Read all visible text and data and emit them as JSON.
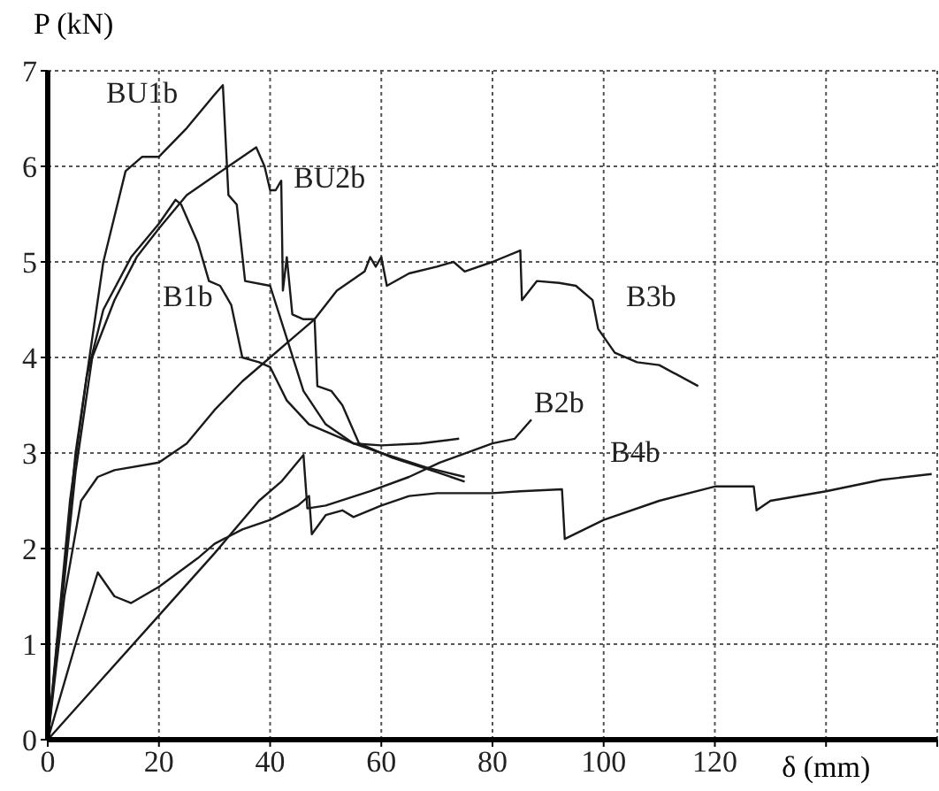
{
  "chart_data": {
    "type": "line",
    "xlabel": "δ (mm)",
    "ylabel": "P (kN)",
    "xlim": [
      0,
      160
    ],
    "xticks": [
      0,
      20,
      40,
      60,
      80,
      100,
      120,
      {
        "value": 140,
        "label": null
      },
      {
        "value": 160,
        "label": null
      }
    ],
    "ylim": [
      0,
      7
    ],
    "yticks": [
      0,
      1,
      2,
      3,
      4,
      5,
      6,
      7
    ],
    "grid": true,
    "legend": false,
    "series": [
      {
        "name": "BU1b",
        "color": "#1a1a1a",
        "x": [
          0,
          5,
          10,
          14,
          17,
          20,
          25,
          30,
          31.5,
          32.5,
          34,
          35.5,
          40,
          43,
          46,
          50,
          55,
          60,
          67,
          74
        ],
        "values": [
          0,
          3,
          5,
          5.95,
          6.1,
          6.1,
          6.4,
          6.75,
          6.85,
          5.7,
          5.6,
          4.8,
          4.75,
          4.2,
          3.65,
          3.3,
          3.1,
          3.08,
          3.1,
          3.15
        ]
      },
      {
        "name": "BU2b",
        "color": "#1a1a1a",
        "x": [
          0,
          5,
          8,
          12,
          16,
          20,
          25,
          30,
          35,
          37.5,
          39,
          40,
          41,
          42,
          42.3,
          43,
          44,
          46,
          48,
          48.5,
          51,
          53,
          56,
          62,
          70,
          75
        ],
        "values": [
          0,
          2.8,
          4,
          4.6,
          5.05,
          5.35,
          5.7,
          5.9,
          6.1,
          6.2,
          6,
          5.75,
          5.75,
          5.85,
          4.7,
          5.05,
          4.45,
          4.4,
          4.4,
          3.7,
          3.65,
          3.5,
          3.1,
          2.95,
          2.8,
          2.7
        ]
      },
      {
        "name": "B1b",
        "color": "#1a1a1a",
        "x": [
          0,
          4,
          7,
          10,
          15,
          20,
          23,
          24,
          27,
          29,
          31,
          33,
          35,
          38,
          40,
          43,
          47,
          55,
          60,
          68,
          75
        ],
        "values": [
          0,
          2.5,
          3.8,
          4.5,
          5.05,
          5.4,
          5.65,
          5.6,
          5.2,
          4.8,
          4.75,
          4.55,
          4,
          3.95,
          3.9,
          3.55,
          3.3,
          3.1,
          3,
          2.85,
          2.75
        ]
      },
      {
        "name": "B3b",
        "color": "#1a1a1a",
        "x": [
          0,
          3,
          6,
          9,
          12,
          20,
          25,
          30,
          35,
          40,
          44,
          48,
          52,
          57,
          58,
          59,
          60,
          61,
          65,
          70,
          73,
          75,
          80,
          85,
          85.3,
          88,
          92,
          95,
          98,
          99,
          102,
          106,
          110,
          117
        ],
        "values": [
          0,
          1.5,
          2.5,
          2.75,
          2.82,
          2.9,
          3.1,
          3.45,
          3.75,
          4,
          4.2,
          4.4,
          4.7,
          4.9,
          5.05,
          4.95,
          5.05,
          4.75,
          4.88,
          4.95,
          5,
          4.9,
          5,
          5.12,
          4.6,
          4.8,
          4.78,
          4.75,
          4.6,
          4.3,
          4.05,
          3.95,
          3.92,
          3.7
        ]
      },
      {
        "name": "B2b",
        "color": "#1a1a1a",
        "x": [
          0,
          10,
          20,
          30,
          38,
          42,
          46,
          46.7,
          50,
          58,
          65,
          70.5,
          80,
          84,
          87
        ],
        "values": [
          0,
          0.65,
          1.3,
          1.95,
          2.5,
          2.7,
          2.98,
          2.42,
          2.45,
          2.6,
          2.75,
          2.9,
          3.1,
          3.15,
          3.35
        ]
      },
      {
        "name": "B4b",
        "color": "#1a1a1a",
        "x": [
          0,
          5,
          9,
          12,
          15,
          20,
          27,
          30,
          35,
          40,
          45,
          47,
          47.5,
          50,
          53,
          55,
          60,
          65,
          70,
          80,
          85,
          92.5,
          93,
          100,
          110,
          120,
          127,
          127.5,
          130,
          140,
          150,
          159
        ],
        "values": [
          0,
          1,
          1.75,
          1.5,
          1.43,
          1.6,
          1.9,
          2.05,
          2.2,
          2.3,
          2.45,
          2.55,
          2.15,
          2.35,
          2.4,
          2.33,
          2.45,
          2.55,
          2.58,
          2.58,
          2.6,
          2.62,
          2.1,
          2.3,
          2.5,
          2.65,
          2.65,
          2.4,
          2.5,
          2.6,
          2.72,
          2.78
        ]
      }
    ]
  }
}
